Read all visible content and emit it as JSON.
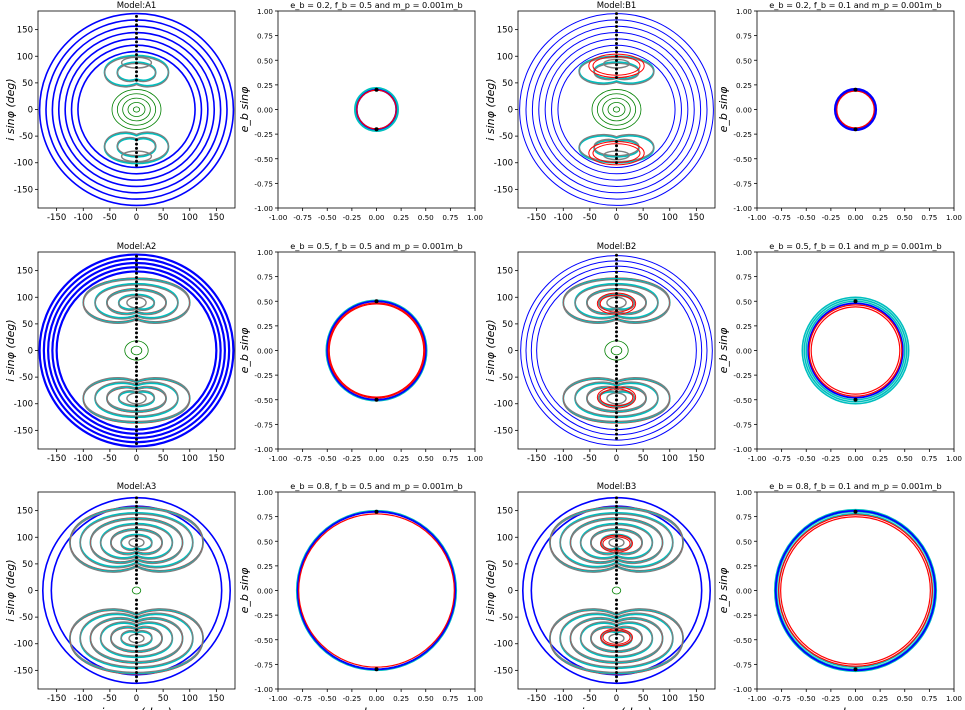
{
  "figure": {
    "description_labels": {
      "inc_xlabel": "i cosφ (deg)",
      "inc_ylabel": "i sinφ (deg)",
      "ecc_xlabel": "e_b cosφ",
      "ecc_ylabel": "e_b sinφ"
    },
    "colors": {
      "blue": "#0000ff",
      "green": "#008000",
      "cyan": "#00bfbf",
      "red": "#ff0000",
      "grey": "#7f7f7f",
      "black": "#000000"
    }
  },
  "chart_data": [
    {
      "type": "line",
      "kind": "inclination",
      "title": "Model:A1",
      "xlabel": "",
      "ylabel": "i sinφ (deg)",
      "xlim": [
        -185,
        185
      ],
      "ylim": [
        -185,
        185
      ],
      "xticks": [
        -150,
        -100,
        -50,
        0,
        50,
        100,
        150
      ],
      "yticks": [
        -150,
        -100,
        -50,
        0,
        50,
        100,
        150
      ],
      "show_xticklabels": true,
      "series": {
        "blue_circles": [
          110,
          122,
          134,
          146,
          158,
          170,
          182
        ],
        "blue_width": 1.6,
        "green_centers": [
          {
            "y": 0,
            "radii": [
              6,
              16,
              26,
              36,
              46
            ]
          }
        ],
        "lobes": [
          {
            "y": 88,
            "w": 28,
            "h": 10
          },
          {
            "y": -88,
            "w": 28,
            "h": 10
          }
        ],
        "horseshoe_top": {
          "y": 70,
          "w": 60,
          "h": 38
        },
        "horseshoe_bot": {
          "y": -70,
          "w": 60,
          "h": 38
        },
        "red_lobes": [],
        "dots_range": [
          -105,
          180
        ]
      }
    },
    {
      "type": "line",
      "kind": "eccentricity",
      "title": "e_b = 0.2, f_b = 0.5 and m_p = 0.001m_b",
      "xlabel": "",
      "ylabel": "e_b sinφ",
      "xlim": [
        -1,
        1
      ],
      "ylim": [
        -1,
        1
      ],
      "xticks": [
        -1,
        -0.75,
        -0.5,
        -0.25,
        0,
        0.25,
        0.5,
        0.75,
        1
      ],
      "yticks": [
        -1,
        -0.75,
        -0.5,
        -0.25,
        0,
        0.25,
        0.5,
        0.75,
        1
      ],
      "show_xticklabels": true,
      "series": {
        "e": 0.2,
        "cyan": [
          0.22,
          0.21
        ],
        "red": [
          0.2
        ],
        "blue": [
          0.2
        ],
        "dots": [
          0.2,
          -0.2
        ]
      }
    },
    {
      "type": "line",
      "kind": "inclination",
      "title": "Model:B1",
      "xlabel": "",
      "ylabel": "i sinφ (deg)",
      "xlim": [
        -185,
        185
      ],
      "ylim": [
        -185,
        185
      ],
      "xticks": [
        -150,
        -100,
        -50,
        0,
        50,
        100,
        150
      ],
      "yticks": [
        -150,
        -100,
        -50,
        0,
        50,
        100,
        150
      ],
      "show_xticklabels": true,
      "series": {
        "blue_circles": [
          110,
          122,
          134,
          146,
          158,
          170,
          182
        ],
        "blue_width": 1.0,
        "green_centers": [
          {
            "y": 0,
            "radii": [
              6,
              16,
              26,
              36,
              46
            ]
          }
        ],
        "lobes": [
          {
            "y": 86,
            "w": 24,
            "h": 8
          },
          {
            "y": -86,
            "w": 24,
            "h": 8
          }
        ],
        "horseshoe_top": {
          "y": 72,
          "w": 70,
          "h": 34
        },
        "horseshoe_bot": {
          "y": -72,
          "w": 70,
          "h": 34
        },
        "red_lobes": [
          {
            "y": 82,
            "w": 52,
            "h": 22
          },
          {
            "y": -82,
            "w": 52,
            "h": 22
          }
        ],
        "dots_range": [
          -100,
          180
        ]
      }
    },
    {
      "type": "line",
      "kind": "eccentricity",
      "title": "e_b = 0.2, f_b = 0.1 and m_p = 0.001m_b",
      "xlabel": "",
      "ylabel": "e_b sinφ",
      "xlim": [
        -1,
        1
      ],
      "ylim": [
        -1,
        1
      ],
      "xticks": [
        -1,
        -0.75,
        -0.5,
        -0.25,
        0,
        0.25,
        0.5,
        0.75,
        1
      ],
      "yticks": [
        -1,
        -0.75,
        -0.5,
        -0.25,
        0,
        0.25,
        0.5,
        0.75,
        1
      ],
      "show_xticklabels": true,
      "series": {
        "e": 0.2,
        "cyan": [
          0.2
        ],
        "red": [
          0.19
        ],
        "blue": [
          0.2,
          0.21
        ],
        "dots": [
          0.2,
          -0.2
        ]
      }
    },
    {
      "type": "line",
      "kind": "inclination",
      "title": "Model:A2",
      "xlabel": "",
      "ylabel": "i sinφ (deg)",
      "xlim": [
        -185,
        185
      ],
      "ylim": [
        -185,
        185
      ],
      "xticks": [
        -150,
        -100,
        -50,
        0,
        50,
        100,
        150
      ],
      "yticks": [
        -150,
        -100,
        -50,
        0,
        50,
        100,
        150
      ],
      "show_xticklabels": true,
      "series": {
        "blue_circles": [
          150,
          158,
          166,
          174,
          182
        ],
        "blue_width": 2.2,
        "green_centers": [
          {
            "y": 0,
            "radii": [
              10,
              22
            ]
          }
        ],
        "lobes": [
          {
            "y": 90,
            "w": 18,
            "h": 10
          },
          {
            "y": -90,
            "w": 18,
            "h": 10
          }
        ],
        "horseshoe_top": {
          "y": 90,
          "w": 100,
          "h": 55
        },
        "horseshoe_bot": {
          "y": -90,
          "w": 100,
          "h": 55
        },
        "nested_top": 4,
        "red_lobes": [],
        "dots_range": [
          -175,
          180
        ]
      }
    },
    {
      "type": "line",
      "kind": "eccentricity",
      "title": "e_b = 0.5, f_b = 0.5 and m_p = 0.001m_b",
      "xlabel": "",
      "ylabel": "e_b sinφ",
      "xlim": [
        -1,
        1
      ],
      "ylim": [
        -1,
        1
      ],
      "xticks": [
        -1,
        -0.75,
        -0.5,
        -0.25,
        0,
        0.25,
        0.5,
        0.75,
        1
      ],
      "yticks": [
        -1,
        -0.75,
        -0.5,
        -0.25,
        0,
        0.25,
        0.5,
        0.75,
        1
      ],
      "show_xticklabels": true,
      "series": {
        "e": 0.5,
        "cyan": [
          0.51,
          0.5
        ],
        "red": [
          0.49,
          0.48
        ],
        "blue": [
          0.5
        ],
        "dots": [
          0.5,
          -0.5
        ]
      }
    },
    {
      "type": "line",
      "kind": "inclination",
      "title": "Model:B2",
      "xlabel": "",
      "ylabel": "i sinφ (deg)",
      "xlim": [
        -185,
        185
      ],
      "ylim": [
        -185,
        185
      ],
      "xticks": [
        -150,
        -100,
        -50,
        0,
        50,
        100,
        150
      ],
      "yticks": [
        -150,
        -100,
        -50,
        0,
        50,
        100,
        150
      ],
      "show_xticklabels": true,
      "series": {
        "blue_circles": [
          150,
          160,
          170,
          180
        ],
        "blue_width": 1.0,
        "green_centers": [
          {
            "y": 0,
            "radii": [
              10,
              22
            ]
          }
        ],
        "lobes": [
          {
            "y": 90,
            "w": 18,
            "h": 10
          },
          {
            "y": -90,
            "w": 18,
            "h": 10
          }
        ],
        "horseshoe_top": {
          "y": 90,
          "w": 100,
          "h": 55
        },
        "horseshoe_bot": {
          "y": -90,
          "w": 100,
          "h": 55
        },
        "nested_top": 4,
        "red_lobes": [
          {
            "y": 88,
            "w": 36,
            "h": 20
          },
          {
            "y": -88,
            "w": 36,
            "h": 20
          }
        ],
        "dots_range": [
          -165,
          180
        ]
      }
    },
    {
      "type": "line",
      "kind": "eccentricity",
      "title": "e_b = 0.5, f_b = 0.1 and m_p = 0.001m_b",
      "xlabel": "",
      "ylabel": "e_b sinφ",
      "xlim": [
        -1,
        1
      ],
      "ylim": [
        -1,
        1
      ],
      "xticks": [
        -1,
        -0.75,
        -0.5,
        -0.25,
        0,
        0.25,
        0.5,
        0.75,
        1
      ],
      "yticks": [
        -1,
        -0.75,
        -0.5,
        -0.25,
        0,
        0.25,
        0.5,
        0.75,
        1
      ],
      "show_xticklabels": true,
      "series": {
        "e": 0.5,
        "cyan": [
          0.52,
          0.5,
          0.54
        ],
        "red": [
          0.45,
          0.47
        ],
        "blue": [
          0.48
        ],
        "dots": [
          0.5,
          -0.5
        ]
      }
    },
    {
      "type": "line",
      "kind": "inclination",
      "title": "Model:A3",
      "xlabel": "i cosφ (deg)",
      "ylabel": "i sinφ (deg)",
      "xlim": [
        -185,
        185
      ],
      "ylim": [
        -185,
        185
      ],
      "xticks": [
        -150,
        -100,
        -50,
        0,
        50,
        100,
        150
      ],
      "yticks": [
        -150,
        -100,
        -50,
        0,
        50,
        100,
        150
      ],
      "show_xticklabels": true,
      "series": {
        "blue_circles": [
          160,
          176
        ],
        "blue_width": 1.6,
        "green_centers": [
          {
            "y": 0,
            "radii": [
              8
            ]
          }
        ],
        "lobes": [
          {
            "y": 90,
            "w": 14,
            "h": 8
          },
          {
            "y": -90,
            "w": 14,
            "h": 8
          }
        ],
        "horseshoe_top": {
          "y": 90,
          "w": 125,
          "h": 80
        },
        "horseshoe_bot": {
          "y": -90,
          "w": 125,
          "h": 80
        },
        "nested_top": 6,
        "red_lobes": [],
        "dots_range": [
          -170,
          180
        ]
      }
    },
    {
      "type": "line",
      "kind": "eccentricity",
      "title": "e_b = 0.8, f_b = 0.5 and m_p = 0.001m_b",
      "xlabel": "e_b cosφ",
      "ylabel": "e_b sinφ",
      "xlim": [
        -1,
        1
      ],
      "ylim": [
        -1,
        1
      ],
      "xticks": [
        -1,
        -0.75,
        -0.5,
        -0.25,
        0,
        0.25,
        0.5,
        0.75,
        1
      ],
      "yticks": [
        -1,
        -0.75,
        -0.5,
        -0.25,
        0,
        0.25,
        0.5,
        0.75,
        1
      ],
      "show_xticklabels": true,
      "series": {
        "e": 0.8,
        "cyan": [
          0.8,
          0.81
        ],
        "red": [
          0.79
        ],
        "blue": [
          0.8
        ],
        "dots": [
          0.8,
          -0.8
        ]
      }
    },
    {
      "type": "line",
      "kind": "inclination",
      "title": "Model:B3",
      "xlabel": "i cosφ (deg)",
      "ylabel": "i sinφ (deg)",
      "xlim": [
        -185,
        185
      ],
      "ylim": [
        -185,
        185
      ],
      "xticks": [
        -150,
        -100,
        -50,
        0,
        50,
        100,
        150
      ],
      "yticks": [
        -150,
        -100,
        -50,
        0,
        50,
        100,
        150
      ],
      "show_xticklabels": true,
      "series": {
        "blue_circles": [
          160,
          176
        ],
        "blue_width": 1.6,
        "green_centers": [
          {
            "y": 0,
            "radii": [
              8
            ]
          }
        ],
        "lobes": [
          {
            "y": 90,
            "w": 14,
            "h": 8
          },
          {
            "y": -90,
            "w": 14,
            "h": 8
          }
        ],
        "horseshoe_top": {
          "y": 90,
          "w": 125,
          "h": 80
        },
        "horseshoe_bot": {
          "y": -90,
          "w": 125,
          "h": 80
        },
        "nested_top": 6,
        "red_lobes": [
          {
            "y": 88,
            "w": 30,
            "h": 16
          },
          {
            "y": -88,
            "w": 30,
            "h": 16
          }
        ],
        "dots_range": [
          -170,
          180
        ]
      }
    },
    {
      "type": "line",
      "kind": "eccentricity",
      "title": "e_b = 0.8, f_b = 0.1 and m_p = 0.001m_b",
      "xlabel": "e_b cosφ",
      "ylabel": "e_b sinφ",
      "xlim": [
        -1,
        1
      ],
      "ylim": [
        -1,
        1
      ],
      "xticks": [
        -1,
        -0.75,
        -0.5,
        -0.25,
        0,
        0.25,
        0.5,
        0.75,
        1
      ],
      "yticks": [
        -1,
        -0.75,
        -0.5,
        -0.25,
        0,
        0.25,
        0.5,
        0.75,
        1
      ],
      "show_xticklabels": true,
      "series": {
        "e": 0.8,
        "cyan": [
          0.78,
          0.8,
          0.82
        ],
        "red": [
          0.76,
          0.78
        ],
        "blue": [
          0.81
        ],
        "dots": [
          0.8,
          -0.8
        ]
      }
    }
  ]
}
